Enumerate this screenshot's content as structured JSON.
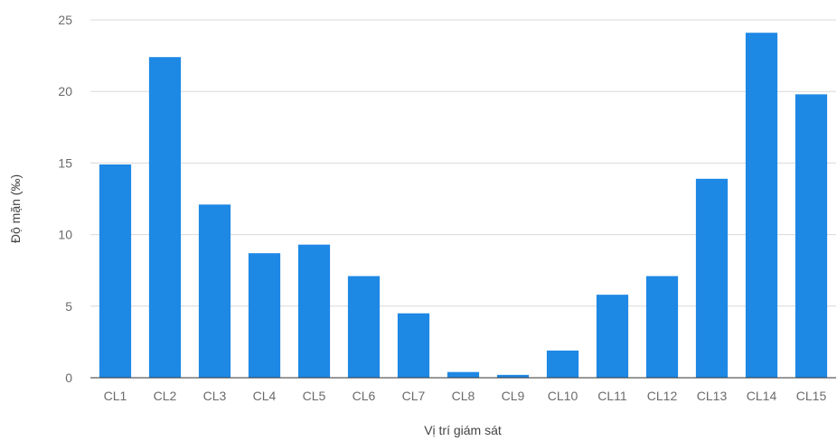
{
  "chart_data": {
    "type": "bar",
    "title": "",
    "xlabel": "Vị trí giám sát",
    "ylabel": "Độ mặn (‰)",
    "categories": [
      "CL1",
      "CL2",
      "CL3",
      "CL4",
      "CL5",
      "CL6",
      "CL7",
      "CL8",
      "CL9",
      "CL10",
      "CL11",
      "CL12",
      "CL13",
      "CL14",
      "CL15"
    ],
    "values": [
      14.9,
      22.4,
      12.1,
      8.7,
      9.3,
      7.1,
      4.5,
      0.4,
      0.2,
      1.9,
      5.8,
      7.1,
      13.9,
      24.1,
      19.8
    ],
    "ylim": [
      0,
      25
    ],
    "yticks": [
      0,
      5,
      10,
      15,
      20,
      25
    ],
    "grid": true,
    "legend": "none",
    "bar_color": "#1e88e5"
  }
}
